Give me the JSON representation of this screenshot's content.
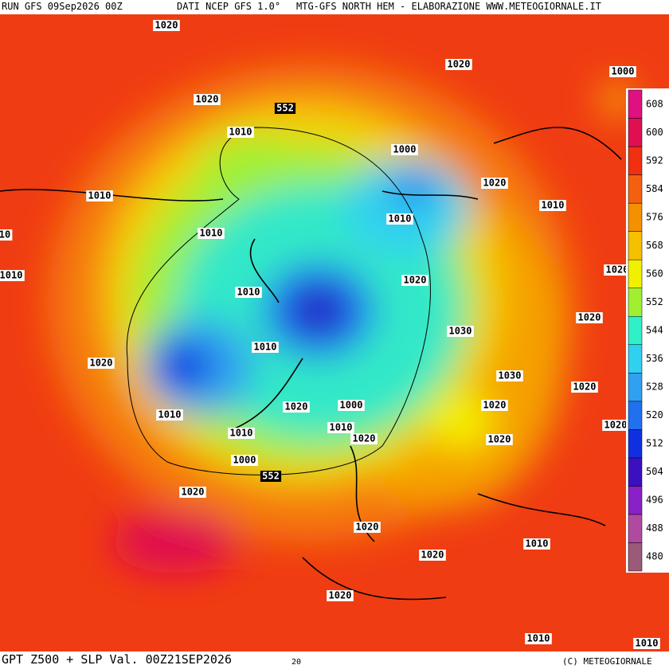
{
  "header": {
    "run": "RUN GFS 09Sep2026 00Z",
    "source": "DATI NCEP GFS 1.0°",
    "credit": "MTG-GFS NORTH HEM - ELABORAZIONE WWW.METEOGIORNALE.IT"
  },
  "footer": {
    "title": "GPT Z500 + SLP Val. 00Z21SEP2026",
    "hour": "20",
    "copyright": "(C) METEOGIORNALE"
  },
  "isobar_labels": [
    "1020",
    "1020",
    "1000",
    "1020",
    "552",
    "1010",
    "1000",
    "1020",
    "1010",
    "1010",
    "1010",
    "10",
    "1010",
    "1010",
    "1020",
    "1020",
    "1010",
    "1020",
    "1030",
    "1010",
    "1020",
    "1030",
    "1020",
    "1000",
    "1020",
    "1020",
    "1010",
    "1020",
    "1010",
    "1010",
    "1020",
    "1020",
    "1000",
    "552",
    "1020",
    "1020",
    "1010",
    "1020",
    "1020",
    "1010",
    "1010"
  ],
  "colorbar": {
    "levels": [
      480,
      488,
      496,
      504,
      512,
      520,
      528,
      536,
      544,
      552,
      560,
      568,
      576,
      584,
      592,
      600,
      608
    ],
    "colors": [
      "#9a5a78",
      "#b04aa0",
      "#8a20c8",
      "#3a10c0",
      "#1030e0",
      "#2070f0",
      "#30a0f0",
      "#30d0f0",
      "#30f0c8",
      "#a0f030",
      "#f0f000",
      "#f5c000",
      "#f59000",
      "#f56010",
      "#f03010",
      "#e01050",
      "#e01080"
    ]
  }
}
